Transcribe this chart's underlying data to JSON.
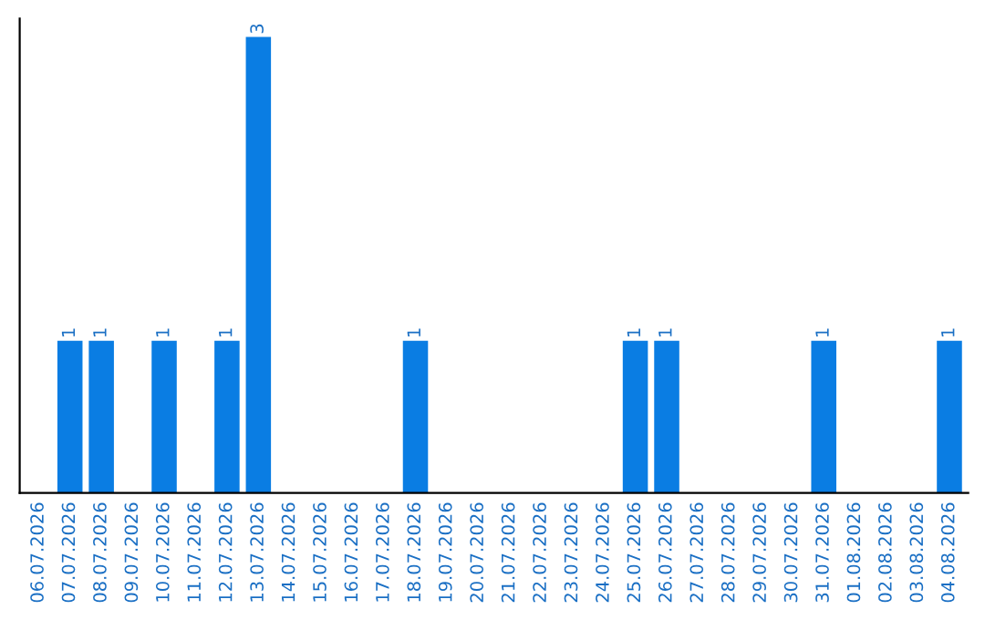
{
  "chart_data": {
    "type": "bar",
    "categories": [
      "06.07.2026",
      "07.07.2026",
      "08.07.2026",
      "09.07.2026",
      "10.07.2026",
      "11.07.2026",
      "12.07.2026",
      "13.07.2026",
      "14.07.2026",
      "15.07.2026",
      "16.07.2026",
      "17.07.2026",
      "18.07.2026",
      "19.07.2026",
      "20.07.2026",
      "21.07.2026",
      "22.07.2026",
      "23.07.2026",
      "24.07.2026",
      "25.07.2026",
      "26.07.2026",
      "27.07.2026",
      "28.07.2026",
      "29.07.2026",
      "30.07.2026",
      "31.07.2026",
      "01.08.2026",
      "02.08.2026",
      "03.08.2026",
      "04.08.2026"
    ],
    "values": [
      0,
      1,
      1,
      0,
      1,
      0,
      1,
      3,
      0,
      0,
      0,
      0,
      1,
      0,
      0,
      0,
      0,
      0,
      0,
      1,
      1,
      0,
      0,
      0,
      0,
      1,
      0,
      0,
      0,
      1
    ],
    "value_labels": [
      null,
      "1",
      "1",
      null,
      "1",
      null,
      "1",
      "3",
      null,
      null,
      null,
      null,
      "1",
      null,
      null,
      null,
      null,
      null,
      null,
      "1",
      "1",
      null,
      null,
      null,
      null,
      "1",
      null,
      null,
      null,
      "1"
    ],
    "color": "#0a7de3",
    "tick_labels": "x",
    "grid": false,
    "legend": false
  }
}
